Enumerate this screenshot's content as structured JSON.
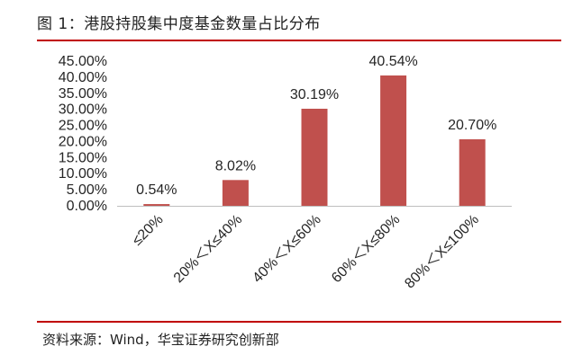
{
  "figure": {
    "title": "图 1：港股持股集中度基金数量占比分布",
    "source": "资料来源：Wind，华宝证券研究创新部"
  },
  "colors": {
    "bar": "#c0504d",
    "rule": "#c00000",
    "axis": "#bfbfbf",
    "text": "#262626"
  },
  "chart_data": {
    "type": "bar",
    "categories": [
      "≤20%",
      "20%＜X≤40%",
      "40%＜X≤60%",
      "60%＜X≤80%",
      "80%＜X≤100%"
    ],
    "values": [
      0.54,
      8.02,
      30.19,
      40.54,
      20.7
    ],
    "data_labels": [
      "0.54%",
      "8.02%",
      "30.19%",
      "40.54%",
      "20.70%"
    ],
    "ylim": [
      0,
      45
    ],
    "yticks": [
      0,
      5,
      10,
      15,
      20,
      25,
      30,
      35,
      40,
      45
    ],
    "ytick_labels": [
      "0.00%",
      "5.00%",
      "10.00%",
      "15.00%",
      "20.00%",
      "25.00%",
      "30.00%",
      "35.00%",
      "40.00%",
      "45.00%"
    ],
    "grid": false,
    "legend": "none"
  }
}
